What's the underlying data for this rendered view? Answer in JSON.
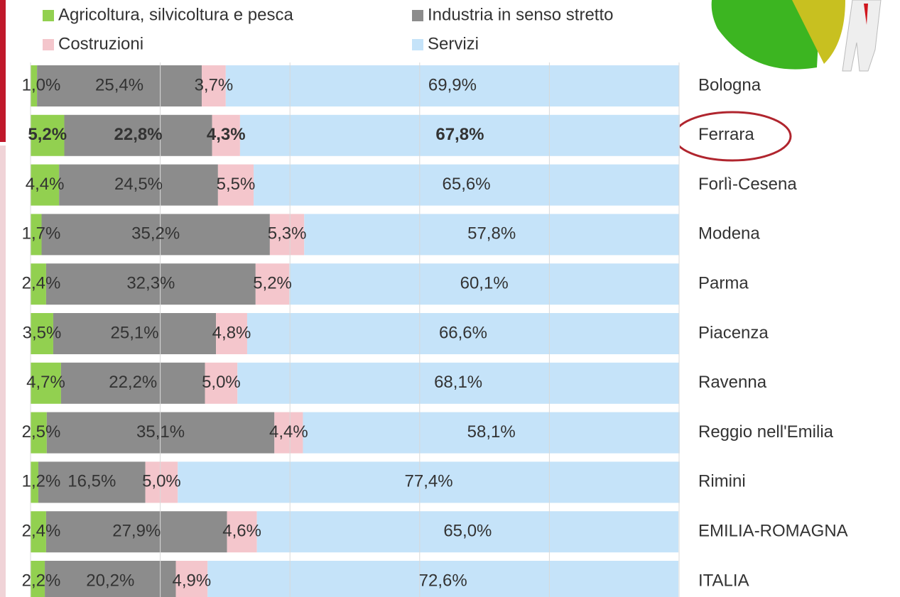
{
  "chart_data": {
    "type": "stacked-bar-horizontal",
    "categories": [
      "Bologna",
      "Ferrara",
      "Forlì-Cesena",
      "Modena",
      "Parma",
      "Piacenza",
      "Ravenna",
      "Reggio nell'Emilia",
      "Rimini",
      "EMILIA-ROMAGNA",
      "ITALIA"
    ],
    "series": [
      {
        "name": "Agricoltura, silvicoltura e pesca",
        "color": "#92d050",
        "values": [
          1.0,
          5.2,
          4.4,
          1.7,
          2.4,
          3.5,
          4.7,
          2.5,
          1.2,
          2.4,
          2.2
        ],
        "value_labels": [
          "1,0%",
          "5,2%",
          "4,4%",
          "1,7%",
          "2,4%",
          "3,5%",
          "4,7%",
          "2,5%",
          "1,2%",
          "2,4%",
          "2,2%"
        ]
      },
      {
        "name": "Industria in senso stretto",
        "color": "#8c8c8c",
        "values": [
          25.4,
          22.8,
          24.5,
          35.2,
          32.3,
          25.1,
          22.2,
          35.1,
          16.5,
          27.9,
          20.2
        ],
        "value_labels": [
          "25,4%",
          "22,8%",
          "24,5%",
          "35,2%",
          "32,3%",
          "25,1%",
          "22,2%",
          "35,1%",
          "16,5%",
          "27,9%",
          "20,2%"
        ]
      },
      {
        "name": "Costruzioni",
        "color": "#f4c6cc",
        "values": [
          3.7,
          4.3,
          5.5,
          5.3,
          5.2,
          4.8,
          5.0,
          4.4,
          5.0,
          4.6,
          4.9
        ],
        "value_labels": [
          "3,7%",
          "4,3%",
          "5,5%",
          "5,3%",
          "5,2%",
          "4,8%",
          "5,0%",
          "4,4%",
          "5,0%",
          "4,6%",
          "4,9%"
        ]
      },
      {
        "name": "Servizi",
        "color": "#c5e3f9",
        "values": [
          69.9,
          67.8,
          65.6,
          57.8,
          60.1,
          66.6,
          68.1,
          58.1,
          77.4,
          65.0,
          72.6
        ],
        "value_labels": [
          "69,9%",
          "67,8%",
          "65,6%",
          "57,8%",
          "60,1%",
          "66,6%",
          "68,1%",
          "58,1%",
          "77,4%",
          "65,0%",
          "72,6%"
        ]
      }
    ],
    "xlim": [
      0,
      100
    ],
    "xticks": [
      0,
      20,
      40,
      60,
      80,
      100
    ],
    "grid": true
  }
}
